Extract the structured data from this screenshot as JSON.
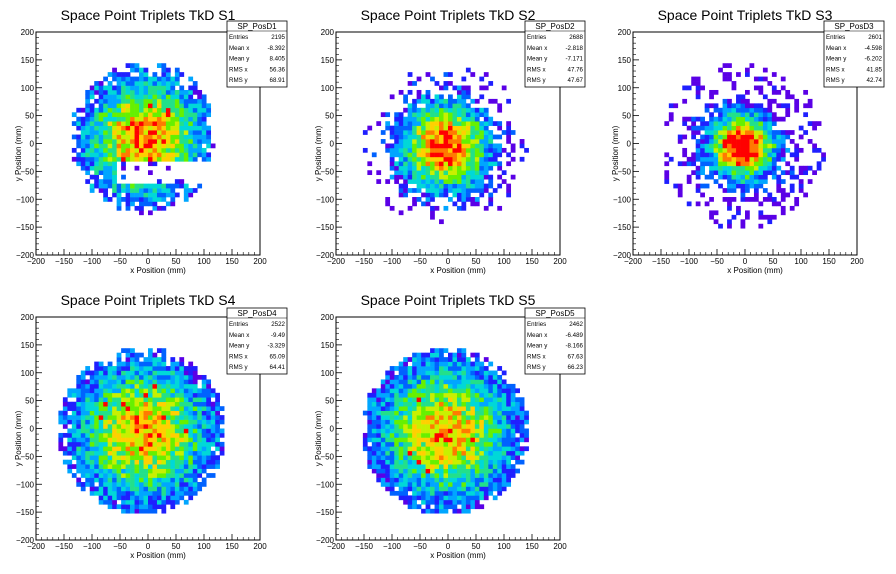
{
  "chart_data": [
    {
      "type": "heatmap",
      "title": "Space Point Triplets TkD S1",
      "xlabel": "x Position (mm)",
      "ylabel": "y Position (mm)",
      "xlim": [
        -200,
        200
      ],
      "ylim": [
        -200,
        200
      ],
      "xticks": [
        "−200",
        "−150",
        "−100",
        "−50",
        "0",
        "50",
        "100",
        "150",
        "200"
      ],
      "yticks": [
        "−200",
        "−150",
        "−100",
        "−50",
        "0",
        "50",
        "100",
        "150",
        "200"
      ],
      "stats": {
        "name": "SP_PosD1",
        "rows": [
          {
            "label": "Entries",
            "value": "2195"
          },
          {
            "label": "Mean x",
            "value": "-8.392"
          },
          {
            "label": "Mean y",
            "value": "8.405"
          },
          {
            "label": "RMS x",
            "value": "56.36"
          },
          {
            "label": "RMS y",
            "value": "68.91"
          }
        ]
      }
    },
    {
      "type": "heatmap",
      "title": "Space Point Triplets TkD S2",
      "xlabel": "x Position (mm)",
      "ylabel": "y Position (mm)",
      "xlim": [
        -200,
        200
      ],
      "ylim": [
        -200,
        200
      ],
      "xticks": [
        "−200",
        "−150",
        "−100",
        "−50",
        "0",
        "50",
        "100",
        "150",
        "200"
      ],
      "yticks": [
        "−200",
        "−150",
        "−100",
        "−50",
        "0",
        "50",
        "100",
        "150",
        "200"
      ],
      "stats": {
        "name": "SP_PosD2",
        "rows": [
          {
            "label": "Entries",
            "value": "2688"
          },
          {
            "label": "Mean x",
            "value": "-2.818"
          },
          {
            "label": "Mean y",
            "value": "-7.171"
          },
          {
            "label": "RMS x",
            "value": "47.76"
          },
          {
            "label": "RMS y",
            "value": "47.67"
          }
        ]
      }
    },
    {
      "type": "heatmap",
      "title": "Space Point Triplets TkD S3",
      "xlabel": "x Position (mm)",
      "ylabel": "y Position (mm)",
      "xlim": [
        -200,
        200
      ],
      "ylim": [
        -200,
        200
      ],
      "xticks": [
        "−200",
        "−150",
        "−100",
        "−50",
        "0",
        "50",
        "100",
        "150",
        "200"
      ],
      "yticks": [
        "−200",
        "−150",
        "−100",
        "−50",
        "0",
        "50",
        "100",
        "150",
        "200"
      ],
      "stats": {
        "name": "SP_PosD3",
        "rows": [
          {
            "label": "Entries",
            "value": "2601"
          },
          {
            "label": "Mean x",
            "value": "-4.598"
          },
          {
            "label": "Mean y",
            "value": "-6.202"
          },
          {
            "label": "RMS x",
            "value": "41.85"
          },
          {
            "label": "RMS y",
            "value": "42.74"
          }
        ]
      }
    },
    {
      "type": "heatmap",
      "title": "Space Point Triplets TkD S4",
      "xlabel": "x Position (mm)",
      "ylabel": "y Position (mm)",
      "xlim": [
        -200,
        200
      ],
      "ylim": [
        -200,
        200
      ],
      "xticks": [
        "−200",
        "−150",
        "−100",
        "−50",
        "0",
        "50",
        "100",
        "150",
        "200"
      ],
      "yticks": [
        "−200",
        "−150",
        "−100",
        "−50",
        "0",
        "50",
        "100",
        "150",
        "200"
      ],
      "stats": {
        "name": "SP_PosD4",
        "rows": [
          {
            "label": "Entries",
            "value": "2522"
          },
          {
            "label": "Mean x",
            "value": "-9.49"
          },
          {
            "label": "Mean y",
            "value": "-3.329"
          },
          {
            "label": "RMS x",
            "value": "65.09"
          },
          {
            "label": "RMS y",
            "value": "64.41"
          }
        ]
      }
    },
    {
      "type": "heatmap",
      "title": "Space Point Triplets TkD S5",
      "xlabel": "x Position (mm)",
      "ylabel": "y Position (mm)",
      "xlim": [
        -200,
        200
      ],
      "ylim": [
        -200,
        200
      ],
      "xticks": [
        "−200",
        "−150",
        "−100",
        "−50",
        "0",
        "50",
        "100",
        "150",
        "200"
      ],
      "yticks": [
        "−200",
        "−150",
        "−100",
        "−50",
        "0",
        "50",
        "100",
        "150",
        "200"
      ],
      "stats": {
        "name": "SP_PosD5",
        "rows": [
          {
            "label": "Entries",
            "value": "2462"
          },
          {
            "label": "Mean x",
            "value": "-6.489"
          },
          {
            "label": "Mean y",
            "value": "-8.166"
          },
          {
            "label": "RMS x",
            "value": "67.63"
          },
          {
            "label": "RMS y",
            "value": "66.23"
          }
        ]
      }
    }
  ],
  "colors": {
    "palette": [
      "#5a00e6",
      "#1f1fff",
      "#0062ff",
      "#00a6ff",
      "#00d8d8",
      "#22e08a",
      "#66f000",
      "#c8f000",
      "#ffd000",
      "#ff7a00",
      "#ff0000"
    ]
  }
}
